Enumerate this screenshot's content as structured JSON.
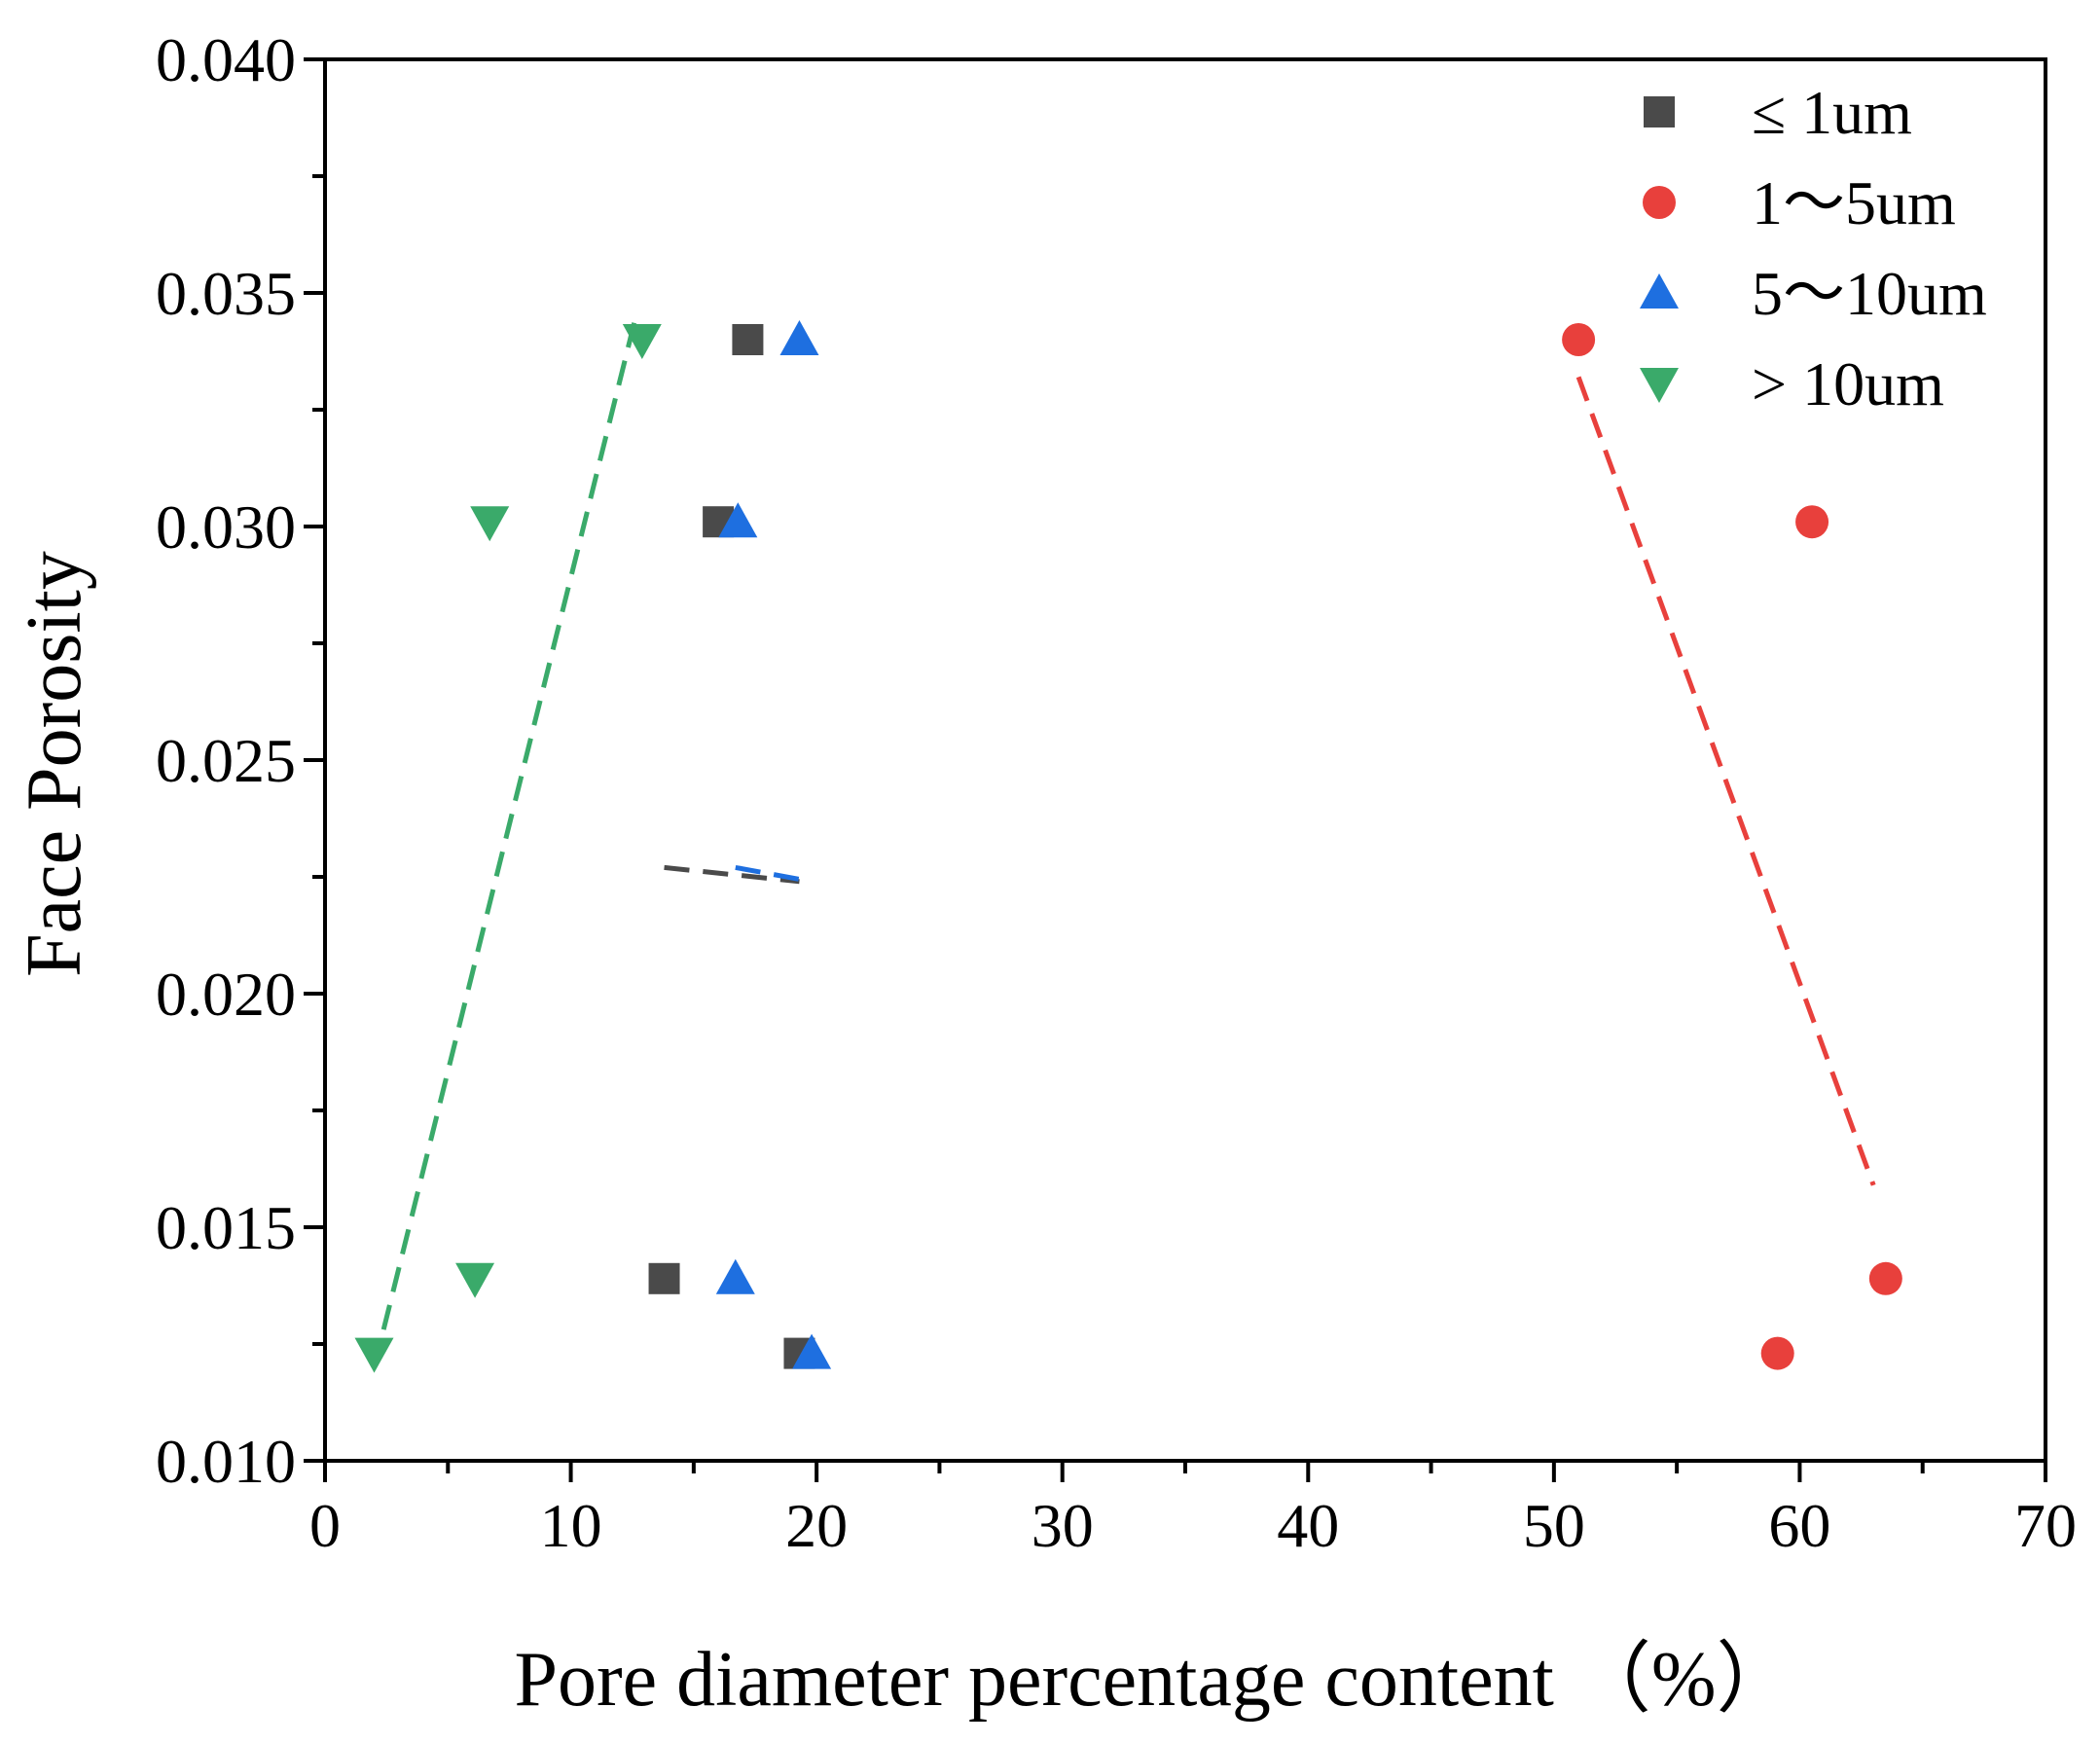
{
  "chart_data": {
    "type": "scatter",
    "title": "",
    "xlabel": "Pore diameter percentage content （%）",
    "ylabel": "Face Porosity",
    "xlim": [
      0,
      70
    ],
    "ylim": [
      0.01,
      0.04
    ],
    "x_ticks": [
      0,
      10,
      20,
      30,
      40,
      50,
      60,
      70
    ],
    "x_tick_labels": [
      "0",
      "10",
      "20",
      "30",
      "40",
      "50",
      "60",
      "70"
    ],
    "y_ticks": [
      0.01,
      0.015,
      0.02,
      0.025,
      0.03,
      0.035,
      0.04
    ],
    "y_tick_labels": [
      "0.010",
      "0.015",
      "0.020",
      "0.025",
      "0.030",
      "0.035",
      "0.040"
    ],
    "grid": false,
    "legend_position": "top-right",
    "series": [
      {
        "name": "≤ 1um",
        "marker": "square",
        "color": "#4a4a4a",
        "points": [
          [
            17.2,
            0.034
          ],
          [
            16.0,
            0.0301
          ],
          [
            13.8,
            0.0139
          ],
          [
            19.3,
            0.0123
          ]
        ],
        "trendline": [
          [
            13.8,
            0.0227
          ],
          [
            19.3,
            0.0224
          ]
        ]
      },
      {
        "name": "1～5um",
        "marker": "circle",
        "color": "#e8403c",
        "points": [
          [
            51.0,
            0.034
          ],
          [
            60.5,
            0.0301
          ],
          [
            63.5,
            0.0139
          ],
          [
            59.1,
            0.0123
          ]
        ],
        "trendline": [
          [
            51.0,
            0.0332
          ],
          [
            63.0,
            0.0159
          ]
        ]
      },
      {
        "name": "5～10um",
        "marker": "triangle-up",
        "color": "#1e6fe0",
        "points": [
          [
            19.3,
            0.034
          ],
          [
            16.8,
            0.0301
          ],
          [
            16.7,
            0.0139
          ],
          [
            19.8,
            0.0123
          ]
        ],
        "trendline": [
          [
            16.7,
            0.0227
          ],
          [
            19.8,
            0.0224
          ]
        ]
      },
      {
        "name": "> 10um",
        "marker": "triangle-down",
        "color": "#3aaa6a",
        "points": [
          [
            12.9,
            0.034
          ],
          [
            6.7,
            0.0301
          ],
          [
            6.1,
            0.0139
          ],
          [
            2.0,
            0.0123
          ]
        ],
        "trendline": [
          [
            2.0,
            0.012
          ],
          [
            12.6,
            0.0344
          ]
        ]
      }
    ]
  }
}
